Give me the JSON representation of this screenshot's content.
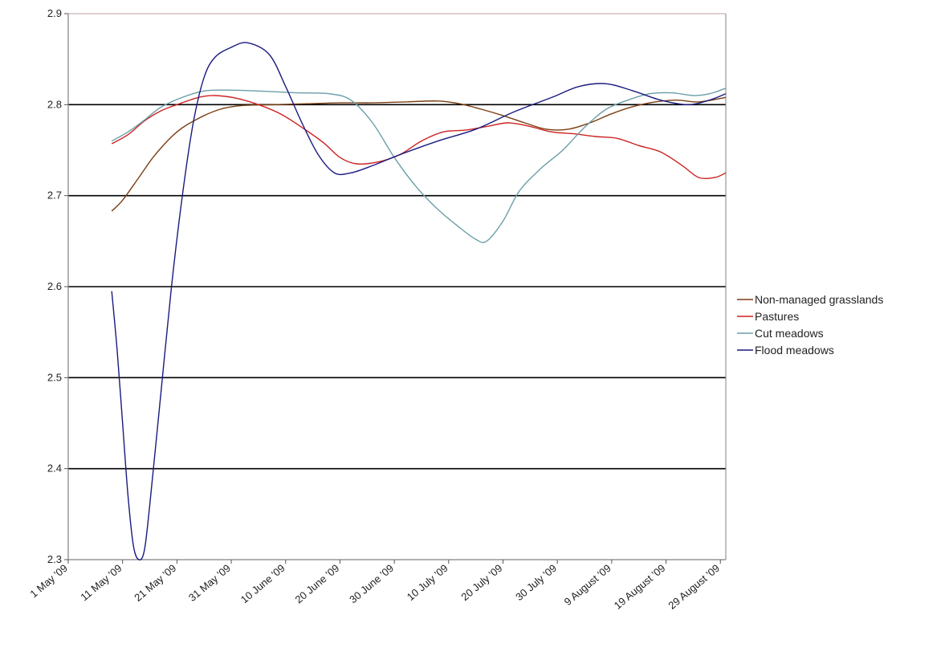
{
  "chart_data": {
    "type": "line",
    "title": "",
    "xlabel": "",
    "ylabel": "",
    "x_axis_type": "date",
    "xlim": [
      "2009-05-01",
      "2009-08-30"
    ],
    "ylim": [
      2.3,
      2.9
    ],
    "y_ticks": [
      2.3,
      2.4,
      2.5,
      2.6,
      2.7,
      2.8,
      2.9
    ],
    "y_tick_labels": [
      "2.3",
      "2.4",
      "2.5",
      "2.6",
      "2.7",
      "2.8",
      "2.9"
    ],
    "x_ticks": [
      "2009-05-01",
      "2009-05-11",
      "2009-05-21",
      "2009-05-31",
      "2009-06-10",
      "2009-06-20",
      "2009-06-30",
      "2009-07-10",
      "2009-07-20",
      "2009-07-30",
      "2009-08-09",
      "2009-08-19",
      "2009-08-29"
    ],
    "x_tick_labels": [
      "1 May '09",
      "11 May '09",
      "21 May '09",
      "31 May '09",
      "10 June '09",
      "20 June '09",
      "30 June '09",
      "10 July '09",
      "20 July '09",
      "30 July '09",
      "9 August '09",
      "19 August '09",
      "29 August '09"
    ],
    "grid": "horizontal",
    "legend_position": "right",
    "colors": {
      "plot_border": "#808080",
      "top_border": "#c0a0a0",
      "gridline": "#000000"
    },
    "series": [
      {
        "name": "Non-managed grasslands",
        "color": "#7a3d12",
        "points": [
          [
            "2009-05-09",
            2.683
          ],
          [
            "2009-05-11",
            2.695
          ],
          [
            "2009-05-14",
            2.72
          ],
          [
            "2009-05-17",
            2.745
          ],
          [
            "2009-05-21",
            2.77
          ],
          [
            "2009-05-25",
            2.785
          ],
          [
            "2009-05-29",
            2.795
          ],
          [
            "2009-06-02",
            2.799
          ],
          [
            "2009-06-08",
            2.8
          ],
          [
            "2009-06-14",
            2.801
          ],
          [
            "2009-06-20",
            2.802
          ],
          [
            "2009-06-26",
            2.802
          ],
          [
            "2009-07-02",
            2.803
          ],
          [
            "2009-07-08",
            2.804
          ],
          [
            "2009-07-12",
            2.801
          ],
          [
            "2009-07-16",
            2.795
          ],
          [
            "2009-07-20",
            2.788
          ],
          [
            "2009-07-24",
            2.78
          ],
          [
            "2009-07-28",
            2.773
          ],
          [
            "2009-08-01",
            2.773
          ],
          [
            "2009-08-05",
            2.78
          ],
          [
            "2009-08-09",
            2.79
          ],
          [
            "2009-08-13",
            2.798
          ],
          [
            "2009-08-17",
            2.803
          ],
          [
            "2009-08-21",
            2.805
          ],
          [
            "2009-08-25",
            2.803
          ],
          [
            "2009-08-30",
            2.808
          ]
        ]
      },
      {
        "name": "Pastures",
        "color": "#cc2222",
        "points": [
          [
            "2009-05-09",
            2.757
          ],
          [
            "2009-05-12",
            2.767
          ],
          [
            "2009-05-15",
            2.782
          ],
          [
            "2009-05-18",
            2.793
          ],
          [
            "2009-05-21",
            2.8
          ],
          [
            "2009-05-25",
            2.808
          ],
          [
            "2009-05-28",
            2.81
          ],
          [
            "2009-06-01",
            2.807
          ],
          [
            "2009-06-05",
            2.8
          ],
          [
            "2009-06-09",
            2.79
          ],
          [
            "2009-06-13",
            2.775
          ],
          [
            "2009-06-17",
            2.758
          ],
          [
            "2009-06-20",
            2.742
          ],
          [
            "2009-06-23",
            2.735
          ],
          [
            "2009-06-27",
            2.737
          ],
          [
            "2009-07-01",
            2.745
          ],
          [
            "2009-07-05",
            2.76
          ],
          [
            "2009-07-09",
            2.77
          ],
          [
            "2009-07-13",
            2.772
          ],
          [
            "2009-07-17",
            2.776
          ],
          [
            "2009-07-21",
            2.78
          ],
          [
            "2009-07-25",
            2.776
          ],
          [
            "2009-07-29",
            2.77
          ],
          [
            "2009-08-02",
            2.768
          ],
          [
            "2009-08-06",
            2.765
          ],
          [
            "2009-08-10",
            2.763
          ],
          [
            "2009-08-14",
            2.755
          ],
          [
            "2009-08-18",
            2.748
          ],
          [
            "2009-08-22",
            2.733
          ],
          [
            "2009-08-25",
            2.72
          ],
          [
            "2009-08-28",
            2.72
          ],
          [
            "2009-08-30",
            2.725
          ]
        ]
      },
      {
        "name": "Cut meadows",
        "color": "#6a9ea8",
        "points": [
          [
            "2009-05-09",
            2.76
          ],
          [
            "2009-05-12",
            2.77
          ],
          [
            "2009-05-15",
            2.783
          ],
          [
            "2009-05-18",
            2.797
          ],
          [
            "2009-05-22",
            2.808
          ],
          [
            "2009-05-26",
            2.815
          ],
          [
            "2009-05-30",
            2.816
          ],
          [
            "2009-06-05",
            2.815
          ],
          [
            "2009-06-12",
            2.813
          ],
          [
            "2009-06-18",
            2.812
          ],
          [
            "2009-06-22",
            2.805
          ],
          [
            "2009-06-26",
            2.78
          ],
          [
            "2009-06-30",
            2.742
          ],
          [
            "2009-07-04",
            2.71
          ],
          [
            "2009-07-08",
            2.685
          ],
          [
            "2009-07-12",
            2.665
          ],
          [
            "2009-07-15",
            2.652
          ],
          [
            "2009-07-17",
            2.65
          ],
          [
            "2009-07-20",
            2.672
          ],
          [
            "2009-07-23",
            2.705
          ],
          [
            "2009-07-27",
            2.73
          ],
          [
            "2009-07-31",
            2.75
          ],
          [
            "2009-08-04",
            2.775
          ],
          [
            "2009-08-08",
            2.795
          ],
          [
            "2009-08-12",
            2.805
          ],
          [
            "2009-08-16",
            2.812
          ],
          [
            "2009-08-20",
            2.813
          ],
          [
            "2009-08-24",
            2.81
          ],
          [
            "2009-08-27",
            2.812
          ],
          [
            "2009-08-30",
            2.818
          ]
        ]
      },
      {
        "name": "Flood meadows",
        "color": "#1a1a80",
        "points": [
          [
            "2009-05-09",
            2.595
          ],
          [
            "2009-05-10",
            2.53
          ],
          [
            "2009-05-11",
            2.45
          ],
          [
            "2009-05-12",
            2.37
          ],
          [
            "2009-05-13",
            2.315
          ],
          [
            "2009-05-14",
            2.3
          ],
          [
            "2009-05-15",
            2.31
          ],
          [
            "2009-05-16",
            2.36
          ],
          [
            "2009-05-18",
            2.48
          ],
          [
            "2009-05-20",
            2.6
          ],
          [
            "2009-05-22",
            2.7
          ],
          [
            "2009-05-24",
            2.78
          ],
          [
            "2009-05-26",
            2.83
          ],
          [
            "2009-05-28",
            2.852
          ],
          [
            "2009-05-31",
            2.863
          ],
          [
            "2009-06-03",
            2.868
          ],
          [
            "2009-06-07",
            2.855
          ],
          [
            "2009-06-10",
            2.82
          ],
          [
            "2009-06-13",
            2.78
          ],
          [
            "2009-06-16",
            2.745
          ],
          [
            "2009-06-19",
            2.725
          ],
          [
            "2009-06-22",
            2.725
          ],
          [
            "2009-06-26",
            2.733
          ],
          [
            "2009-07-01",
            2.745
          ],
          [
            "2009-07-08",
            2.76
          ],
          [
            "2009-07-15",
            2.773
          ],
          [
            "2009-07-22",
            2.792
          ],
          [
            "2009-07-29",
            2.808
          ],
          [
            "2009-08-03",
            2.82
          ],
          [
            "2009-08-08",
            2.823
          ],
          [
            "2009-08-13",
            2.815
          ],
          [
            "2009-08-18",
            2.805
          ],
          [
            "2009-08-23",
            2.8
          ],
          [
            "2009-08-27",
            2.805
          ],
          [
            "2009-08-30",
            2.812
          ]
        ]
      }
    ]
  }
}
